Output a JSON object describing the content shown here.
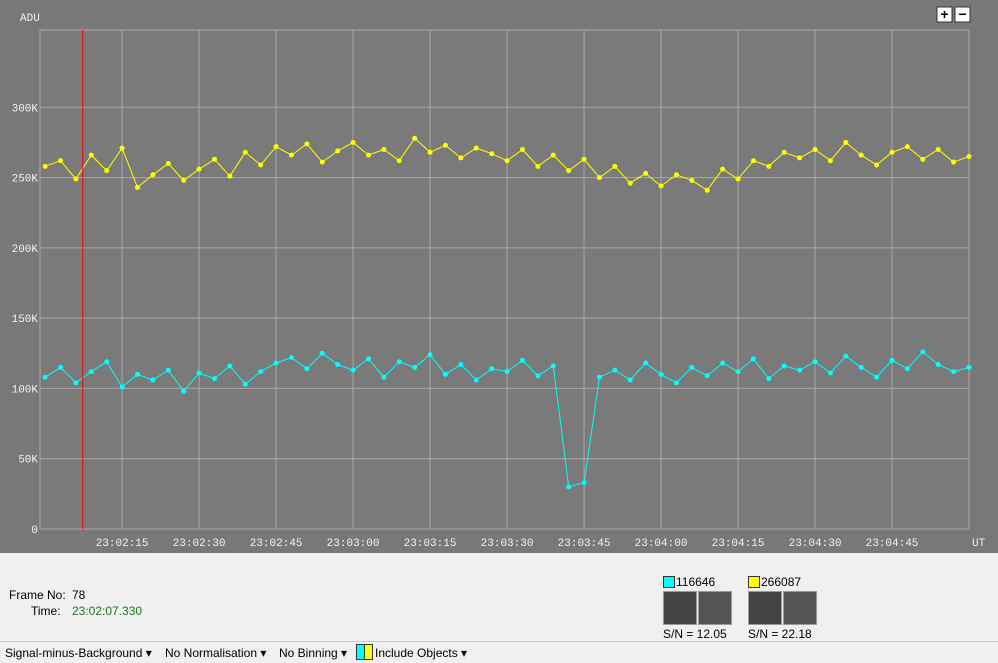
{
  "chart_data": {
    "type": "scatter-line",
    "y_label": "ADU",
    "x_label": "UT",
    "xlim": [
      "23:01:59",
      "23:05:00"
    ],
    "xticks": [
      "23:02:15",
      "23:02:30",
      "23:02:45",
      "23:03:00",
      "23:03:15",
      "23:03:30",
      "23:03:45",
      "23:04:00",
      "23:04:15",
      "23:04:30",
      "23:04:45"
    ],
    "ylim": [
      0,
      355000
    ],
    "yticks": [
      0,
      {
        "value": 50000,
        "label": "50K"
      },
      {
        "value": 100000,
        "label": "100K"
      },
      {
        "value": 150000,
        "label": "150K"
      },
      {
        "value": 200000,
        "label": "200K"
      },
      {
        "value": 250000,
        "label": "250K"
      },
      {
        "value": 300000,
        "label": "300K"
      }
    ],
    "grid": true,
    "x": [
      "23:02:00",
      "23:02:03",
      "23:02:06",
      "23:02:09",
      "23:02:12",
      "23:02:15",
      "23:02:18",
      "23:02:21",
      "23:02:24",
      "23:02:27",
      "23:02:30",
      "23:02:33",
      "23:02:36",
      "23:02:39",
      "23:02:42",
      "23:02:45",
      "23:02:48",
      "23:02:51",
      "23:02:54",
      "23:02:57",
      "23:03:00",
      "23:03:03",
      "23:03:06",
      "23:03:09",
      "23:03:12",
      "23:03:15",
      "23:03:18",
      "23:03:21",
      "23:03:24",
      "23:03:27",
      "23:03:30",
      "23:03:33",
      "23:03:36",
      "23:03:39",
      "23:03:42",
      "23:03:45",
      "23:03:48",
      "23:03:51",
      "23:03:54",
      "23:03:57",
      "23:04:00",
      "23:04:03",
      "23:04:06",
      "23:04:09",
      "23:04:12",
      "23:04:15",
      "23:04:18",
      "23:04:21",
      "23:04:24",
      "23:04:27",
      "23:04:30",
      "23:04:33",
      "23:04:36",
      "23:04:39",
      "23:04:42",
      "23:04:45",
      "23:04:48",
      "23:04:51",
      "23:04:54",
      "23:04:57",
      "23:05:00"
    ],
    "series": [
      {
        "name": "116646",
        "color": "#00ffff",
        "snr_label": "S/N = 12.05",
        "values": [
          108000,
          115000,
          104000,
          112000,
          119000,
          101000,
          110000,
          106000,
          113000,
          98000,
          111000,
          107000,
          116000,
          103000,
          112000,
          118000,
          122000,
          114000,
          125000,
          117000,
          113000,
          121000,
          108000,
          119000,
          115000,
          124000,
          110000,
          117000,
          106000,
          114000,
          112000,
          120000,
          109000,
          116000,
          30000,
          33000,
          108000,
          113000,
          106000,
          118000,
          110000,
          104000,
          115000,
          109000,
          118000,
          112000,
          121000,
          107000,
          116000,
          113000,
          119000,
          111000,
          123000,
          115000,
          108000,
          120000,
          114000,
          126000,
          117000,
          112000,
          115000
        ]
      },
      {
        "name": "266087",
        "color": "#ffff00",
        "snr_label": "S/N = 22.18",
        "values": [
          258000,
          262000,
          249000,
          266000,
          255000,
          271000,
          243000,
          252000,
          260000,
          248000,
          256000,
          263000,
          251000,
          268000,
          259000,
          272000,
          266000,
          274000,
          261000,
          269000,
          275000,
          266000,
          270000,
          262000,
          278000,
          268000,
          273000,
          264000,
          271000,
          267000,
          262000,
          270000,
          258000,
          266000,
          255000,
          263000,
          250000,
          258000,
          246000,
          253000,
          244000,
          252000,
          248000,
          241000,
          256000,
          249000,
          262000,
          258000,
          268000,
          264000,
          270000,
          262000,
          275000,
          266000,
          259000,
          268000,
          272000,
          263000,
          270000,
          261000,
          265000
        ]
      }
    ]
  },
  "zoom": {
    "plus": "+",
    "minus": "−"
  },
  "frame": {
    "frame_label": "Frame No:",
    "frame_no": "78",
    "time_label": "Time:",
    "time": "23:02:07.330"
  },
  "toolbar": [
    "Signal-minus-Background",
    "No Normalisation",
    "No Binning",
    "Include Objects"
  ]
}
